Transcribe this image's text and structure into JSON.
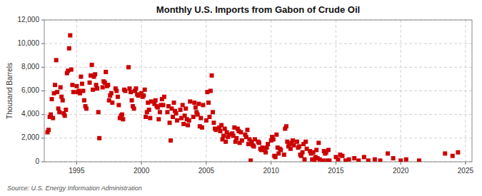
{
  "chart_data": {
    "type": "scatter",
    "title": "Monthly U.S. Imports from Gabon of Crude Oil",
    "ylabel": "Thousand Barrels",
    "source": "Source: U.S. Energy Information Administration",
    "color": "#CC0000",
    "marker": "square",
    "grid": true,
    "xlim": [
      1992.5,
      2025.5
    ],
    "ylim": [
      0,
      12000
    ],
    "xticks": [
      1995,
      2000,
      2005,
      2010,
      2015,
      2020,
      2025
    ],
    "yticks": [
      0,
      {
        "value": 2000,
        "label": "2,000"
      },
      {
        "value": 4000,
        "label": "4,000"
      },
      {
        "value": 6000,
        "label": "6,000"
      },
      {
        "value": 8000,
        "label": "8,000"
      },
      {
        "value": 10000,
        "label": "10,000"
      },
      {
        "value": 12000,
        "label": "12,000"
      }
    ],
    "x": [
      1992.75,
      1992.83,
      1992.92,
      1993.0,
      1993.08,
      1993.17,
      1993.25,
      1993.33,
      1993.42,
      1993.5,
      1993.58,
      1993.67,
      1993.75,
      1993.83,
      1993.92,
      1994.0,
      1994.08,
      1994.17,
      1994.25,
      1994.33,
      1994.42,
      1994.5,
      1994.58,
      1994.67,
      1994.75,
      1995.0,
      1995.08,
      1995.17,
      1995.25,
      1995.33,
      1995.42,
      1995.5,
      1995.58,
      1995.67,
      1995.75,
      1996.0,
      1996.08,
      1996.17,
      1996.25,
      1996.33,
      1996.42,
      1996.5,
      1996.58,
      1996.67,
      1996.75,
      1997.0,
      1997.08,
      1997.17,
      1997.25,
      1997.33,
      1997.42,
      1997.5,
      1997.58,
      1997.67,
      1997.75,
      1998.0,
      1998.08,
      1998.17,
      1998.25,
      1998.33,
      1998.42,
      1998.5,
      1998.58,
      1998.67,
      1998.75,
      1999.0,
      1999.08,
      1999.17,
      1999.25,
      1999.33,
      1999.42,
      1999.5,
      1999.58,
      1999.67,
      1999.75,
      2000.0,
      2000.08,
      2000.17,
      2000.25,
      2000.33,
      2000.42,
      2000.5,
      2000.58,
      2000.67,
      2000.75,
      2001.0,
      2001.08,
      2001.17,
      2001.25,
      2001.33,
      2001.42,
      2001.5,
      2001.58,
      2001.67,
      2001.75,
      2002.0,
      2002.08,
      2002.17,
      2002.25,
      2002.33,
      2002.42,
      2002.5,
      2002.58,
      2002.67,
      2002.75,
      2003.0,
      2003.08,
      2003.17,
      2003.25,
      2003.33,
      2003.42,
      2003.5,
      2003.58,
      2003.67,
      2003.75,
      2004.0,
      2004.08,
      2004.17,
      2004.25,
      2004.33,
      2004.42,
      2004.5,
      2004.58,
      2004.67,
      2004.75,
      2005.0,
      2005.08,
      2005.17,
      2005.25,
      2005.33,
      2005.42,
      2005.5,
      2005.58,
      2005.67,
      2005.75,
      2006.0,
      2006.08,
      2006.17,
      2006.25,
      2006.33,
      2006.42,
      2006.5,
      2006.58,
      2006.67,
      2006.75,
      2007.0,
      2007.08,
      2007.17,
      2007.25,
      2007.33,
      2007.42,
      2007.5,
      2007.58,
      2007.67,
      2007.75,
      2008.0,
      2008.08,
      2008.17,
      2008.25,
      2008.33,
      2008.42,
      2008.5,
      2008.58,
      2008.67,
      2008.75,
      2009.0,
      2009.08,
      2009.17,
      2009.25,
      2009.33,
      2009.42,
      2009.5,
      2009.58,
      2009.67,
      2009.75,
      2010.0,
      2010.08,
      2010.17,
      2010.25,
      2010.33,
      2010.42,
      2010.5,
      2010.58,
      2010.67,
      2010.75,
      2011.0,
      2011.08,
      2011.17,
      2011.25,
      2011.33,
      2011.42,
      2011.5,
      2011.58,
      2011.67,
      2011.75,
      2012.0,
      2012.08,
      2012.17,
      2012.25,
      2012.33,
      2012.42,
      2012.5,
      2012.58,
      2012.67,
      2012.75,
      2013.0,
      2013.08,
      2013.17,
      2013.25,
      2013.33,
      2013.42,
      2013.5,
      2013.58,
      2013.67,
      2013.75,
      2014.0,
      2014.08,
      2014.17,
      2014.25,
      2014.33,
      2014.42,
      2014.5,
      2015.0,
      2015.17,
      2015.33,
      2015.5,
      2015.75,
      2016.0,
      2016.42,
      2016.75,
      2017.17,
      2017.5,
      2018.0,
      2018.42,
      2019.0,
      2019.42,
      2020.0,
      2020.42,
      2021.42,
      2023.42,
      2024.0,
      2024.42
    ],
    "values": [
      2500,
      2700,
      3800,
      4000,
      5300,
      3700,
      5800,
      6500,
      8600,
      5900,
      4500,
      4200,
      6300,
      5500,
      5200,
      4100,
      3900,
      4400,
      7500,
      7700,
      9600,
      10700,
      7800,
      6500,
      5900,
      6400,
      5900,
      6000,
      5800,
      7200,
      6600,
      6000,
      5200,
      4700,
      4500,
      6700,
      7300,
      8200,
      6100,
      7200,
      7400,
      6500,
      6200,
      4200,
      2000,
      6300,
      6800,
      6700,
      7600,
      6400,
      6500,
      5200,
      5600,
      5800,
      5000,
      6200,
      6000,
      5500,
      4800,
      3700,
      3900,
      4000,
      3600,
      6100,
      6000,
      8000,
      6200,
      5900,
      5200,
      4700,
      4500,
      6000,
      6200,
      5700,
      5600,
      5800,
      5500,
      5600,
      6100,
      3800,
      4200,
      5000,
      4400,
      3700,
      5100,
      4900,
      5200,
      4700,
      4600,
      3600,
      4200,
      4800,
      5300,
      4800,
      5500,
      4200,
      4700,
      3300,
      1800,
      4500,
      3800,
      5000,
      4300,
      4100,
      3500,
      4400,
      3700,
      4800,
      3200,
      3900,
      4500,
      3600,
      3100,
      3500,
      5100,
      3800,
      5000,
      4600,
      4200,
      4000,
      4900,
      3000,
      3700,
      2900,
      4800,
      3500,
      5900,
      5000,
      3800,
      6000,
      7300,
      4200,
      3300,
      2800,
      2700,
      2900,
      2600,
      3100,
      1900,
      2200,
      2800,
      1700,
      2500,
      2100,
      2300,
      2400,
      2200,
      2900,
      1700,
      2000,
      2800,
      2600,
      1600,
      2500,
      1800,
      2300,
      2100,
      2700,
      1500,
      1900,
      100,
      1700,
      1400,
      1300,
      1900,
      1700,
      1600,
      1100,
      1000,
      1200,
      1100,
      1000,
      800,
      1200,
      1500,
      1800,
      2100,
      1900,
      500,
      400,
      2300,
      1200,
      700,
      1100,
      1000,
      600,
      2800,
      3000,
      1700,
      1300,
      1500,
      1100,
      1600,
      1800,
      1400,
      1700,
      1200,
      1300,
      600,
      500,
      800,
      1500,
      200,
      1700,
      1100,
      900,
      700,
      200,
      800,
      100,
      400,
      1000,
      300,
      1600,
      200,
      100,
      900,
      700,
      800,
      100,
      1000,
      100,
      400,
      200,
      600,
      500,
      100,
      200,
      300,
      100,
      400,
      100,
      200,
      100,
      700,
      300,
      100,
      200,
      100,
      700,
      500,
      800
    ]
  }
}
